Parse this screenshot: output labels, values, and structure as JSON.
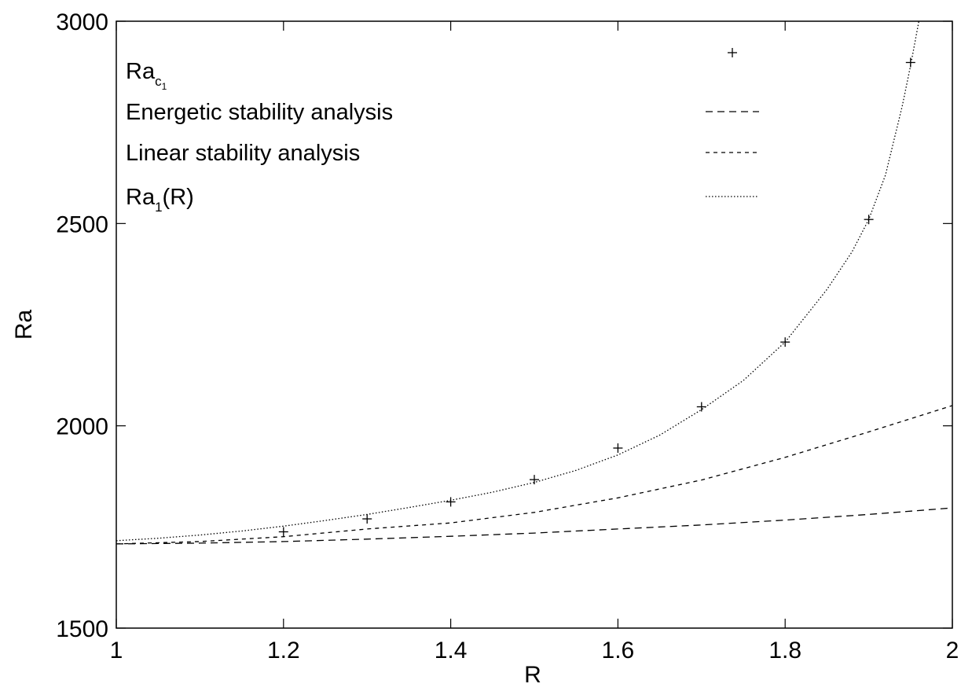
{
  "chart_data": {
    "type": "line",
    "xlabel": "R",
    "ylabel": "Ra",
    "xlim": [
      1,
      2
    ],
    "ylim": [
      1500,
      3000
    ],
    "x_ticks": [
      "1",
      "1.2",
      "1.4",
      "1.6",
      "1.8",
      "2"
    ],
    "y_ticks": [
      "1500",
      "2000",
      "2500",
      "3000"
    ],
    "grid": false,
    "legend_position": "top-right",
    "series": [
      {
        "name": "Ra_{c_1}",
        "label_main": "Ra",
        "label_sub": "c",
        "label_subsub": "1",
        "style": "points-plus",
        "x": [
          1.2,
          1.3,
          1.4,
          1.5,
          1.6,
          1.7,
          1.8,
          1.9,
          1.95
        ],
        "y": [
          1738,
          1770,
          1812,
          1867,
          1945,
          2047,
          2207,
          2510,
          2898
        ]
      },
      {
        "name": "Energetic stability analysis",
        "style": "long-dash",
        "x": [
          1.0,
          1.1,
          1.2,
          1.3,
          1.4,
          1.5,
          1.6,
          1.7,
          1.8,
          1.9,
          2.0
        ],
        "y": [
          1708,
          1710,
          1714,
          1720,
          1727,
          1735,
          1745,
          1755,
          1767,
          1781,
          1797
        ]
      },
      {
        "name": "Linear stability analysis",
        "style": "short-dash",
        "x": [
          1.0,
          1.1,
          1.2,
          1.3,
          1.4,
          1.5,
          1.6,
          1.7,
          1.8,
          1.9,
          2.0
        ],
        "y": [
          1708,
          1714,
          1726,
          1745,
          1760,
          1786,
          1822,
          1866,
          1922,
          1985,
          2050
        ]
      },
      {
        "name": "Ra_1(R)",
        "label_main": "Ra",
        "label_sub": "1",
        "label_tail": "(R)",
        "style": "dotted",
        "x": [
          1.0,
          1.05,
          1.1,
          1.15,
          1.2,
          1.25,
          1.3,
          1.35,
          1.4,
          1.45,
          1.5,
          1.55,
          1.6,
          1.65,
          1.7,
          1.75,
          1.8,
          1.85,
          1.88,
          1.9,
          1.92,
          1.94,
          1.95,
          1.96
        ],
        "y": [
          1716,
          1722,
          1730,
          1740,
          1752,
          1766,
          1781,
          1798,
          1816,
          1836,
          1860,
          1890,
          1928,
          1977,
          2040,
          2112,
          2207,
          2337,
          2430,
          2510,
          2620,
          2790,
          2890,
          3000
        ]
      }
    ]
  },
  "colors": {
    "axis": "#000000",
    "line": "#000000",
    "background": "#ffffff"
  }
}
